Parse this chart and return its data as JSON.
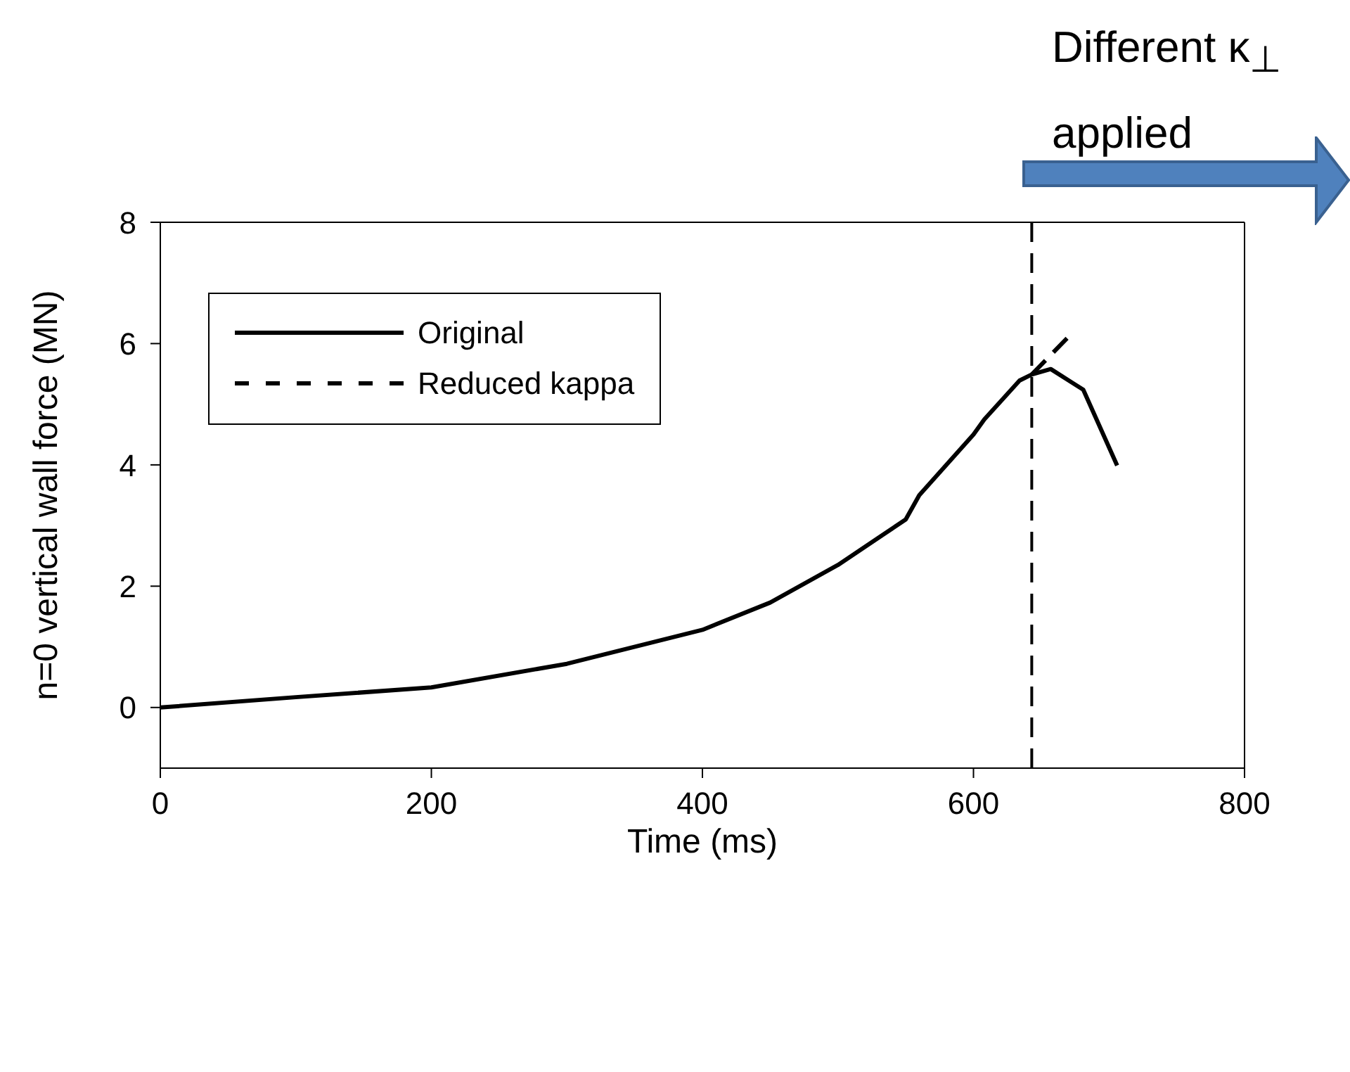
{
  "chart_data": {
    "type": "line",
    "xlabel": "Time (ms)",
    "ylabel": "n=0 vertical wall force (MN)",
    "xlim": [
      0,
      800
    ],
    "xticks": [
      0,
      200,
      400,
      600,
      800
    ],
    "ylim": [
      -1,
      8
    ],
    "yticks": [
      0,
      2,
      4,
      6,
      8
    ],
    "legend": "top left",
    "marker": "none",
    "series": [
      {
        "name": "Original",
        "color": "#000000",
        "line_style": "solid",
        "x": [
          0,
          100,
          200,
          300,
          400,
          450,
          500,
          550,
          560,
          600,
          608,
          634,
          643,
          657,
          681,
          706
        ],
        "values": [
          0,
          0.17,
          0.33,
          0.72,
          1.28,
          1.73,
          2.35,
          3.1,
          3.5,
          4.5,
          4.75,
          5.39,
          5.49,
          5.58,
          5.24,
          3.99
        ]
      },
      {
        "name": "Reduced kappa",
        "color": "#000000",
        "line_style": "dashed",
        "x": [
          643,
          670
        ],
        "values": [
          5.49,
          6.11
        ]
      }
    ],
    "ref_lines": [
      {
        "axis": "x",
        "value": 643,
        "color": "#000000",
        "line_style": "dashed"
      }
    ],
    "annotations": [
      "Different κ$_{⊥}$ applied"
    ]
  }
}
